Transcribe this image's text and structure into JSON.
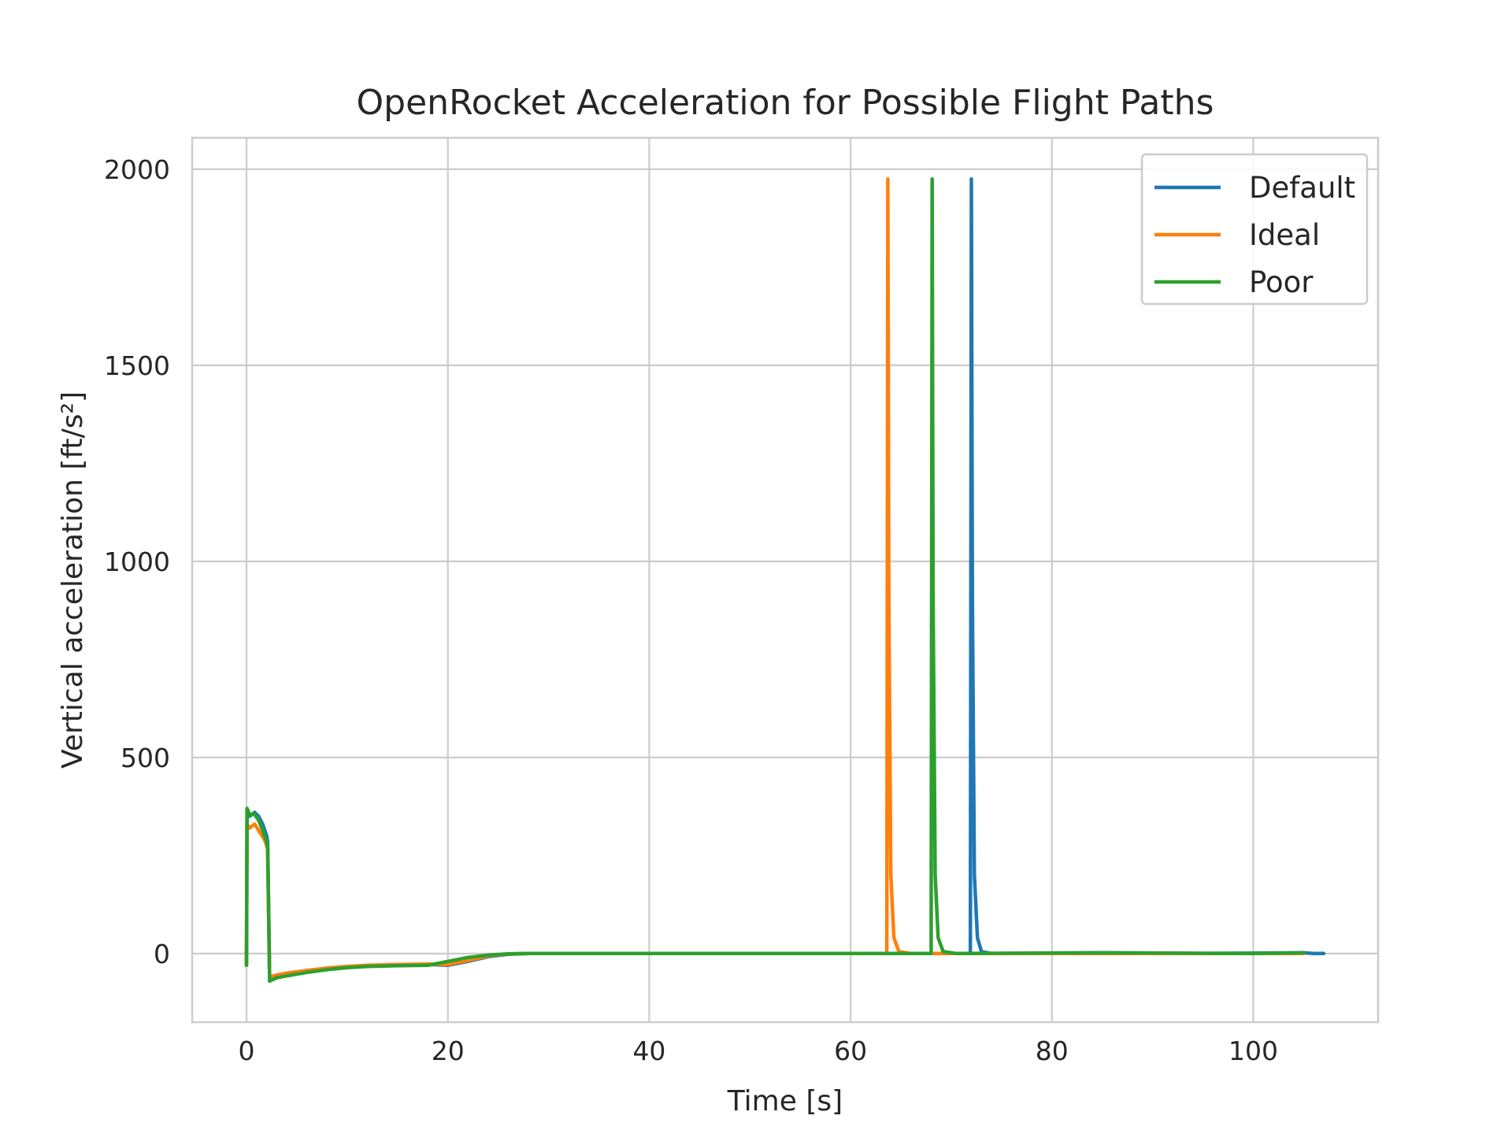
{
  "chart_data": {
    "type": "line",
    "title": "OpenRocket Acceleration for Possible Flight Paths",
    "xlabel": "Time [s]",
    "ylabel": "Vertical acceleration [ft/s²]",
    "xlim": [
      -5.4,
      112.4
    ],
    "ylim": [
      -175,
      2080
    ],
    "xticks": [
      0,
      20,
      40,
      60,
      80,
      100
    ],
    "yticks": [
      0,
      500,
      1000,
      1500,
      2000
    ],
    "xtick_labels": [
      "0",
      "20",
      "40",
      "60",
      "80",
      "100"
    ],
    "ytick_labels": [
      "0",
      "500",
      "1000",
      "1500",
      "2000"
    ],
    "grid": true,
    "legend": "top-right",
    "series": [
      {
        "name": "Default",
        "color": "#1f77b4",
        "x": [
          0,
          0.05,
          0.3,
          0.8,
          1.2,
          1.6,
          2.0,
          2.1,
          2.3,
          3.0,
          4.0,
          6.0,
          8.0,
          10.0,
          12.0,
          15.0,
          18.0,
          20.0,
          22.0,
          24.0,
          26.0,
          28.0,
          35.0,
          50.0,
          71.5,
          71.9,
          72.0,
          72.1,
          72.3,
          72.6,
          73.0,
          74.0,
          85.0,
          95.0,
          105.0,
          106.0,
          107.0
        ],
        "y": [
          -30,
          370,
          350,
          360,
          350,
          330,
          300,
          285,
          -70,
          -60,
          -55,
          -47,
          -40,
          -35,
          -32,
          -30,
          -28,
          -30,
          -20,
          -8,
          -2,
          0,
          0,
          0,
          0,
          0,
          1975,
          900,
          200,
          40,
          5,
          0,
          2,
          0,
          2,
          0,
          0
        ]
      },
      {
        "name": "Ideal",
        "color": "#ff7f0e",
        "x": [
          0,
          0.05,
          0.3,
          0.8,
          1.3,
          1.8,
          2.0,
          2.1,
          2.3,
          3.0,
          4.0,
          6.0,
          8.0,
          10.0,
          12.0,
          15.0,
          18.0,
          20.0,
          22.0,
          24.0,
          26.0,
          28.0,
          35.0,
          50.0,
          63.3,
          63.6,
          63.7,
          63.8,
          64.0,
          64.3,
          64.8,
          66.0,
          80.0,
          100.0,
          105.0
        ],
        "y": [
          -30,
          330,
          320,
          330,
          310,
          290,
          275,
          265,
          -60,
          -55,
          -50,
          -43,
          -37,
          -33,
          -30,
          -28,
          -27,
          -28,
          -18,
          -6,
          -1,
          0,
          0,
          0,
          0,
          0,
          1975,
          900,
          200,
          40,
          5,
          0,
          0,
          0,
          0
        ]
      },
      {
        "name": "Poor",
        "color": "#2ca02c",
        "x": [
          0,
          0.05,
          0.3,
          0.8,
          1.2,
          1.6,
          2.0,
          2.1,
          2.3,
          3.0,
          4.0,
          6.0,
          8.0,
          10.0,
          12.0,
          15.0,
          18.0,
          20.0,
          22.0,
          24.0,
          26.0,
          28.0,
          35.0,
          50.0,
          67.7,
          68.0,
          68.1,
          68.2,
          68.4,
          68.7,
          69.2,
          70.5,
          85.0,
          100.0,
          105.0
        ],
        "y": [
          -30,
          370,
          355,
          355,
          340,
          315,
          285,
          270,
          -70,
          -62,
          -57,
          -48,
          -41,
          -36,
          -33,
          -31,
          -30,
          -20,
          -10,
          -4,
          -1,
          0,
          0,
          0,
          0,
          0,
          1975,
          900,
          200,
          40,
          5,
          0,
          2,
          0,
          2
        ]
      }
    ]
  }
}
